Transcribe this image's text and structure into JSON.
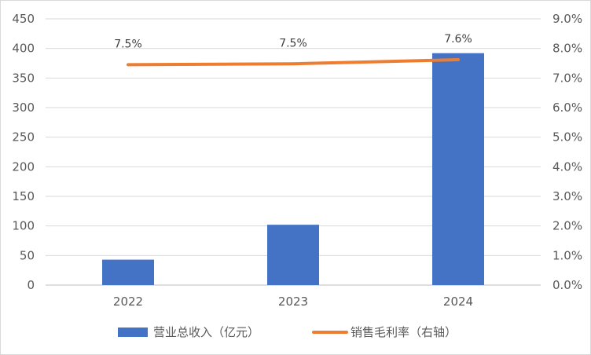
{
  "chart_data": {
    "type": "bar",
    "categories": [
      "2022",
      "2023",
      "2024"
    ],
    "series": [
      {
        "name": "营业总收入（亿元）",
        "type": "bar",
        "axis": "left",
        "values": [
          43,
          102,
          392
        ],
        "color": "#4472C4"
      },
      {
        "name": "销售毛利率（右轴）",
        "type": "line",
        "axis": "right",
        "values": [
          7.45,
          7.48,
          7.62
        ],
        "labels": [
          "7.5%",
          "7.5%",
          "7.6%"
        ],
        "color": "#ED7D31"
      }
    ],
    "y_left": {
      "min": 0,
      "max": 450,
      "ticks": [
        "0",
        "50",
        "100",
        "150",
        "200",
        "250",
        "300",
        "350",
        "400",
        "450"
      ]
    },
    "y_right": {
      "min": 0,
      "max": 9,
      "ticks": [
        "0.0%",
        "1.0%",
        "2.0%",
        "3.0%",
        "4.0%",
        "5.0%",
        "6.0%",
        "7.0%",
        "8.0%",
        "9.0%"
      ]
    },
    "grid": true,
    "legend_position": "bottom"
  }
}
